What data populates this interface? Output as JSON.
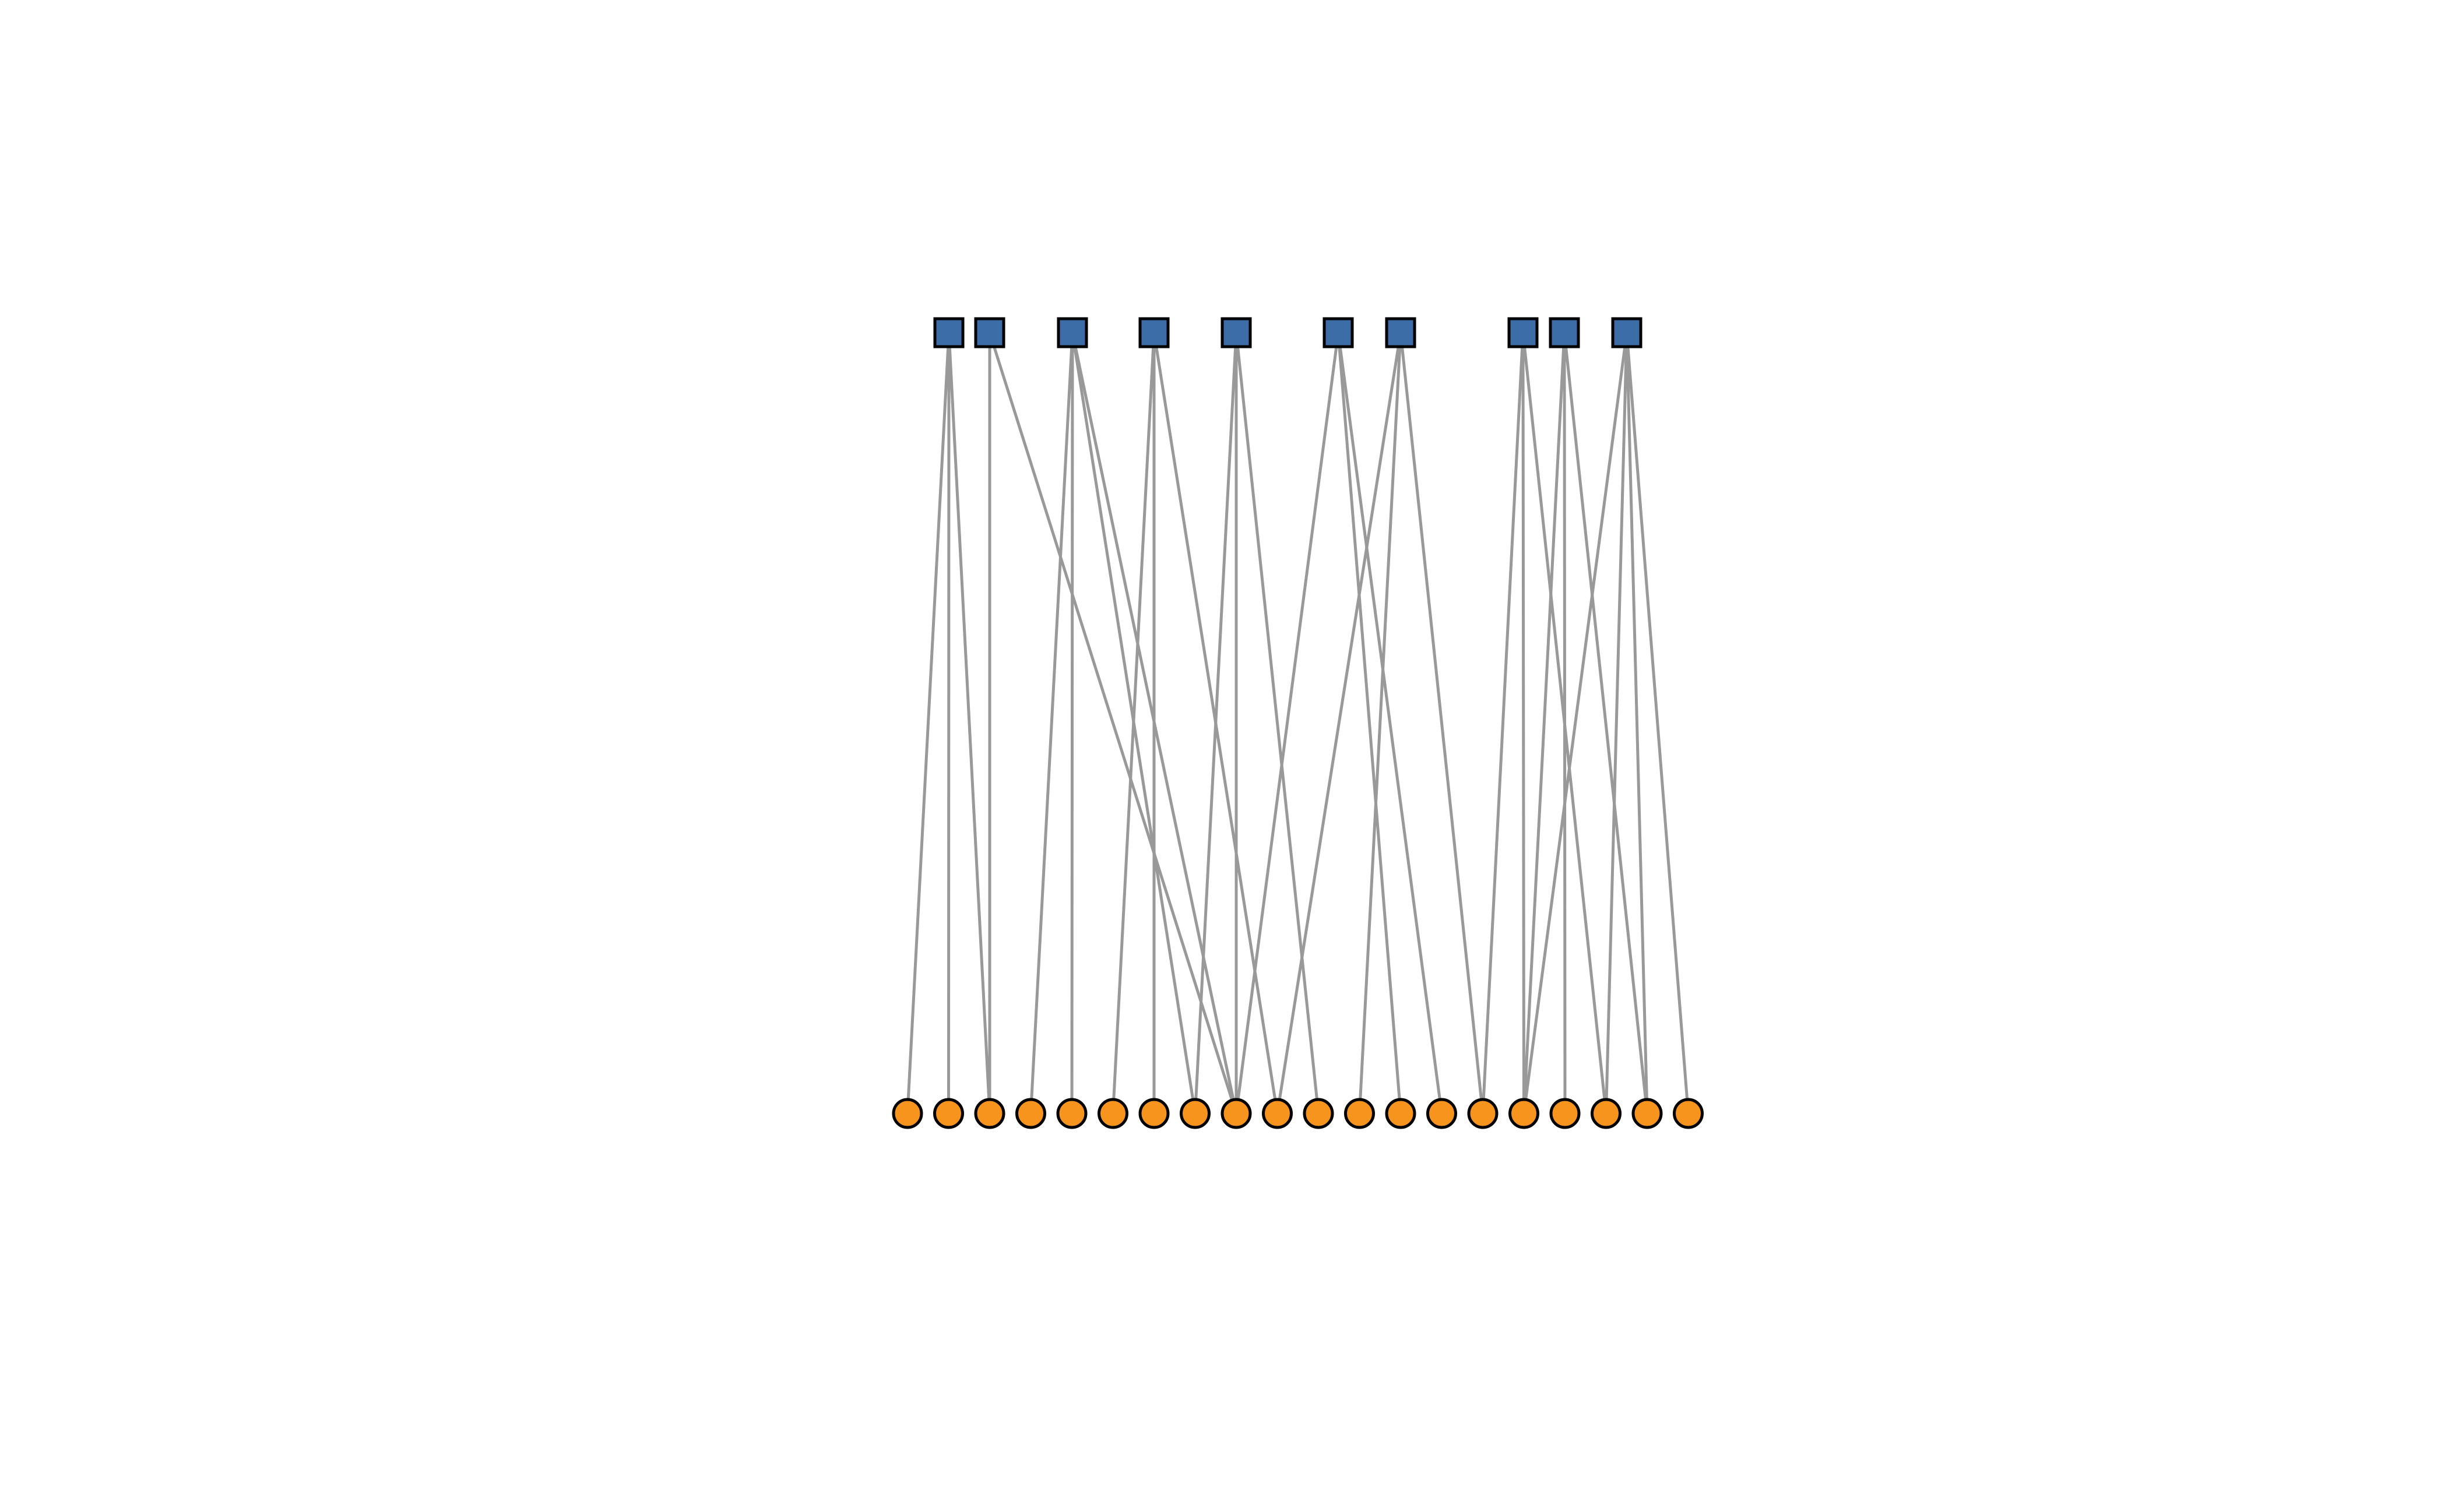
{
  "graph": {
    "type": "bipartite",
    "colors": {
      "background": "#ffffff",
      "top_node_fill": "#3d6da6",
      "bottom_node_fill": "#f7941d",
      "node_stroke": "#000000",
      "edge": "#999999"
    },
    "top_nodes": [
      "t0",
      "t1",
      "t2",
      "t3",
      "t4",
      "t5",
      "t6",
      "t7",
      "t8",
      "t9"
    ],
    "bottom_nodes": [
      "b0",
      "b1",
      "b2",
      "b3",
      "b4",
      "b5",
      "b6",
      "b7",
      "b8",
      "b9",
      "b10",
      "b11",
      "b12",
      "b13",
      "b14",
      "b15",
      "b16",
      "b17",
      "b18",
      "b19"
    ],
    "edges": [
      [
        "t0",
        "b0"
      ],
      [
        "t0",
        "b1"
      ],
      [
        "t0",
        "b2"
      ],
      [
        "t1",
        "b2"
      ],
      [
        "t1",
        "b8"
      ],
      [
        "t2",
        "b3"
      ],
      [
        "t2",
        "b4"
      ],
      [
        "t2",
        "b7"
      ],
      [
        "t2",
        "b8"
      ],
      [
        "t3",
        "b5"
      ],
      [
        "t3",
        "b6"
      ],
      [
        "t3",
        "b9"
      ],
      [
        "t4",
        "b7"
      ],
      [
        "t4",
        "b8"
      ],
      [
        "t4",
        "b10"
      ],
      [
        "t5",
        "b8"
      ],
      [
        "t5",
        "b12"
      ],
      [
        "t5",
        "b13"
      ],
      [
        "t6",
        "b9"
      ],
      [
        "t6",
        "b11"
      ],
      [
        "t6",
        "b14"
      ],
      [
        "t7",
        "b14"
      ],
      [
        "t7",
        "b15"
      ],
      [
        "t7",
        "b17"
      ],
      [
        "t8",
        "b15"
      ],
      [
        "t8",
        "b16"
      ],
      [
        "t8",
        "b18"
      ],
      [
        "t9",
        "b15"
      ],
      [
        "t9",
        "b17"
      ],
      [
        "t9",
        "b18"
      ],
      [
        "t9",
        "b19"
      ]
    ]
  }
}
